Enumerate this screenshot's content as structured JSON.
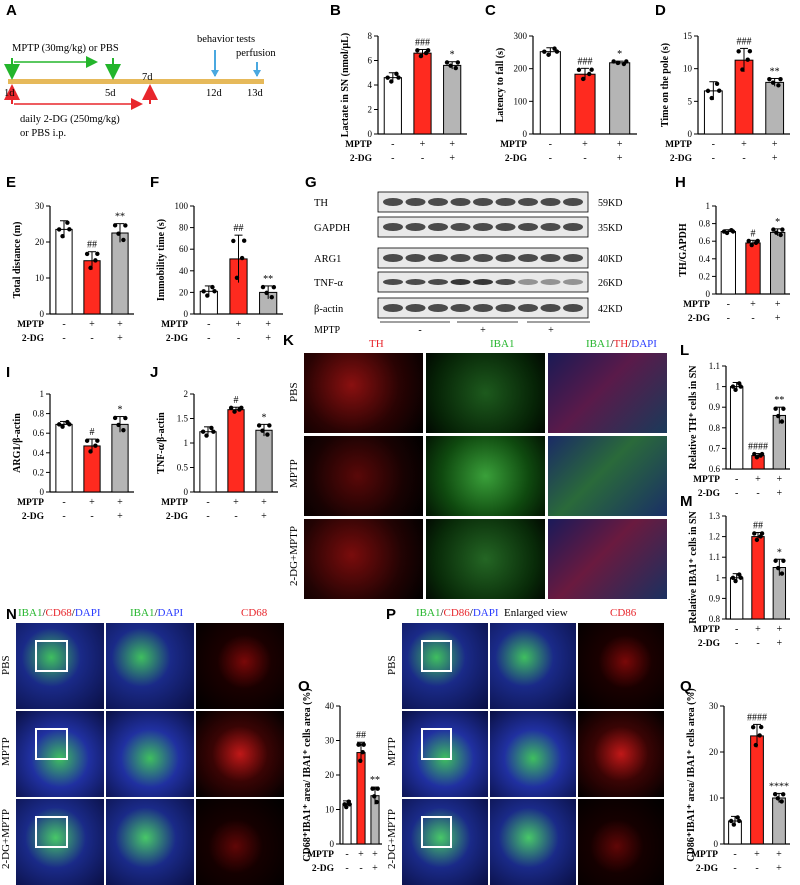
{
  "panels": {
    "A": "A",
    "B": "B",
    "C": "C",
    "D": "D",
    "E": "E",
    "F": "F",
    "G": "G",
    "H": "H",
    "I": "I",
    "J": "J",
    "K": "K",
    "L": "L",
    "M": "M",
    "N": "N",
    "O": "O",
    "P": "P",
    "Q": "Q"
  },
  "timeline": {
    "mptp_label": "MPTP (30mg/kg) or PBS",
    "dg_label_1": "daily 2-DG (250mg/kg)",
    "dg_label_2": "or PBS i.p.",
    "behavior_label": "behavior tests",
    "perfusion_label": "perfusion",
    "days": [
      "1d",
      "5d",
      "7d",
      "12d",
      "13d"
    ]
  },
  "treatment": {
    "mptp_label": "MPTP",
    "dg_label": "2-DG",
    "mptp_signs": [
      "-",
      "+",
      "+"
    ],
    "dg_signs": [
      "-",
      "-",
      "+"
    ]
  },
  "western": {
    "bands": [
      "TH",
      "GAPDH",
      "ARG1",
      "TNF-α",
      "β-actin"
    ],
    "sizes": [
      "59KD",
      "35KD",
      "40KD",
      "26KD",
      "42KD"
    ],
    "mptp_label": "MPTP",
    "dg_label": "2-DG",
    "mptp_signs": [
      "-",
      "+",
      "+"
    ],
    "dg_signs": [
      "-",
      "-",
      "+"
    ]
  },
  "micrograph_K": {
    "columns": [
      "TH",
      "IBA1",
      "IBA1/TH/DAPI"
    ],
    "rows": [
      "PBS",
      "MPTP",
      "2-DG+MPTP"
    ]
  },
  "micrograph_N": {
    "columns": [
      "IBA1/CD68/DAPI",
      "IBA1/DAPI",
      "CD68"
    ],
    "rows": [
      "PBS",
      "MPTP",
      "2-DG+MPTP"
    ]
  },
  "micrograph_P": {
    "columns": [
      "IBA1/CD86/DAPI",
      "Enlarged view",
      "CD86"
    ],
    "rows": [
      "PBS",
      "MPTP",
      "2-DG+MPTP"
    ]
  },
  "chart_data": [
    {
      "panel": "B",
      "type": "bar",
      "ylabel": "Lactate in SN (nmol/µL)",
      "ylim": [
        0,
        8
      ],
      "yticks": [
        0,
        2,
        4,
        6,
        8
      ],
      "values": [
        4.6,
        6.6,
        5.6
      ],
      "errors": [
        0.4,
        0.3,
        0.3
      ],
      "annotations": [
        "",
        "###",
        "*"
      ],
      "colors": [
        "#ffffff",
        "#ff2a1f",
        "#b5b5b5"
      ]
    },
    {
      "panel": "C",
      "type": "bar",
      "ylabel": "Latency to fall (s)",
      "ylim": [
        0,
        300
      ],
      "yticks": [
        0,
        100,
        200,
        300
      ],
      "values": [
        252,
        183,
        218
      ],
      "errors": [
        12,
        18,
        5
      ],
      "annotations": [
        "",
        "###",
        "*"
      ],
      "colors": [
        "#ffffff",
        "#ff2a1f",
        "#b5b5b5"
      ]
    },
    {
      "panel": "D",
      "type": "bar",
      "ylabel": "Time on the pole (s)",
      "ylim": [
        0,
        15
      ],
      "yticks": [
        0,
        5,
        10,
        15
      ],
      "values": [
        6.6,
        11.3,
        7.9
      ],
      "errors": [
        1.4,
        1.8,
        0.6
      ],
      "annotations": [
        "",
        "###",
        "**"
      ],
      "colors": [
        "#ffffff",
        "#ff2a1f",
        "#b5b5b5"
      ]
    },
    {
      "panel": "E",
      "type": "bar",
      "ylabel": "Total distance (m)",
      "ylim": [
        0,
        30
      ],
      "yticks": [
        0,
        10,
        20,
        30
      ],
      "values": [
        23.5,
        14.8,
        22.5
      ],
      "errors": [
        2.4,
        2.5,
        2.6
      ],
      "annotations": [
        "",
        "##",
        "**"
      ],
      "colors": [
        "#ffffff",
        "#ff2a1f",
        "#b5b5b5"
      ]
    },
    {
      "panel": "F",
      "type": "bar",
      "ylabel": "Immobility time (s)",
      "ylim": [
        0,
        100
      ],
      "yticks": [
        0,
        20,
        40,
        60,
        80,
        100
      ],
      "values": [
        21,
        51,
        20
      ],
      "errors": [
        5,
        22,
        6
      ],
      "annotations": [
        "",
        "##",
        "**"
      ],
      "colors": [
        "#ffffff",
        "#ff2a1f",
        "#b5b5b5"
      ]
    },
    {
      "panel": "H",
      "type": "bar",
      "ylabel": "TH/GAPDH",
      "ylim": [
        0,
        1.0
      ],
      "yticks": [
        0.0,
        0.2,
        0.4,
        0.6,
        0.8,
        1.0
      ],
      "values": [
        0.71,
        0.58,
        0.7
      ],
      "errors": [
        0.02,
        0.03,
        0.04
      ],
      "annotations": [
        "",
        "#",
        "*"
      ],
      "colors": [
        "#ffffff",
        "#ff2a1f",
        "#b5b5b5"
      ]
    },
    {
      "panel": "I",
      "type": "bar",
      "ylabel": "ARG1/β-actin",
      "ylim": [
        0,
        1.0
      ],
      "yticks": [
        0.0,
        0.2,
        0.4,
        0.6,
        0.8,
        1.0
      ],
      "values": [
        0.69,
        0.47,
        0.69
      ],
      "errors": [
        0.03,
        0.07,
        0.08
      ],
      "annotations": [
        "",
        "#",
        "*"
      ],
      "colors": [
        "#ffffff",
        "#ff2a1f",
        "#b5b5b5"
      ]
    },
    {
      "panel": "J",
      "type": "bar",
      "ylabel": "TNF-α/β-actin",
      "ylim": [
        0,
        2.0
      ],
      "yticks": [
        0.0,
        0.5,
        1.0,
        1.5,
        2.0
      ],
      "values": [
        1.23,
        1.68,
        1.26
      ],
      "errors": [
        0.1,
        0.05,
        0.12
      ],
      "annotations": [
        "",
        "#",
        "*"
      ],
      "colors": [
        "#ffffff",
        "#ff2a1f",
        "#b5b5b5"
      ]
    },
    {
      "panel": "L",
      "type": "bar",
      "ylabel": "Relative TH⁺ cells in SN",
      "ylim": [
        0.6,
        1.1
      ],
      "yticks": [
        0.6,
        0.7,
        0.8,
        0.9,
        1.0,
        1.1
      ],
      "values": [
        1.0,
        0.665,
        0.86
      ],
      "errors": [
        0.02,
        0.01,
        0.04
      ],
      "annotations": [
        "",
        "####",
        "**"
      ],
      "colors": [
        "#ffffff",
        "#ff2a1f",
        "#b5b5b5"
      ]
    },
    {
      "panel": "M",
      "type": "bar",
      "ylabel": "Relative IBA1⁺ cells in SN",
      "ylim": [
        0.8,
        1.3
      ],
      "yticks": [
        0.8,
        0.9,
        1.0,
        1.1,
        1.2,
        1.3
      ],
      "values": [
        1.0,
        1.2,
        1.05
      ],
      "errors": [
        0.02,
        0.02,
        0.04
      ],
      "annotations": [
        "",
        "##",
        "*"
      ],
      "colors": [
        "#ffffff",
        "#ff2a1f",
        "#b5b5b5"
      ]
    },
    {
      "panel": "O",
      "type": "bar",
      "ylabel": "CD68⁺IBA1⁺ area/ IBA1⁺ cells area (%)",
      "ylim": [
        0,
        40
      ],
      "yticks": [
        0,
        10,
        20,
        30,
        40
      ],
      "values": [
        11.5,
        26.5,
        14
      ],
      "errors": [
        1,
        3,
        2.5
      ],
      "annotations": [
        "",
        "##",
        "**"
      ],
      "colors": [
        "#ffffff",
        "#ff2a1f",
        "#b5b5b5"
      ]
    },
    {
      "panel": "Q",
      "type": "bar",
      "ylabel": "CD86⁺IBA1⁺ area/ IBA1⁺ cells area (%)",
      "ylim": [
        0,
        30
      ],
      "yticks": [
        0,
        10,
        20,
        30
      ],
      "values": [
        5,
        23.5,
        10
      ],
      "errors": [
        1,
        2.5,
        1
      ],
      "annotations": [
        "",
        "####",
        "****"
      ],
      "colors": [
        "#ffffff",
        "#ff2a1f",
        "#b5b5b5"
      ]
    }
  ]
}
